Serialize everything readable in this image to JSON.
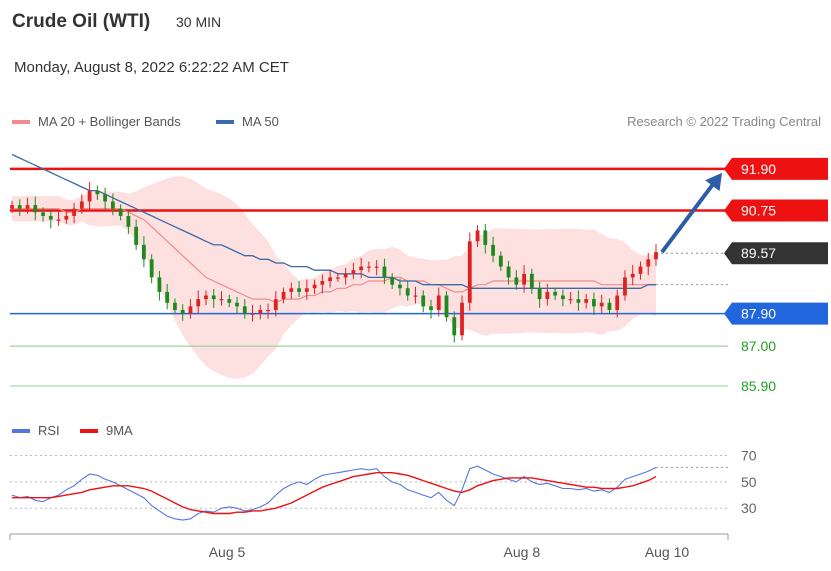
{
  "header": {
    "instrument": "Crude Oil (WTI)",
    "timeframe": "30 MIN",
    "datetime": "Monday, August 8, 2022 6:22:22 AM CET"
  },
  "legend": {
    "ma20": "MA 20 + Bollinger Bands",
    "ma50": "MA 50",
    "rsi": "RSI",
    "rsi_ma": "9MA"
  },
  "copyright": "Research © 2022 Trading Central",
  "colors": {
    "ma20": "#f28b8b",
    "ma50": "#3a6aa8",
    "resistance": "#ee1111",
    "support": "#2266dd",
    "target": "#22a022",
    "candle_up": "#dd2222",
    "candle_down": "#1e8a1e",
    "current": "#333333",
    "arrow": "#2d5ca8",
    "rsi": "#5577dd",
    "rsi_ma": "#ee1111"
  },
  "chart_data": [
    {
      "type": "candlestick",
      "title": "",
      "x_ticks": [
        "Aug 5",
        "Aug 8",
        "Aug 10"
      ],
      "ylim": [
        85.4,
        92.7
      ],
      "levels": [
        {
          "value": 91.9,
          "label": "91.90",
          "kind": "resistance"
        },
        {
          "value": 90.75,
          "label": "90.75",
          "kind": "resistance"
        },
        {
          "value": 89.57,
          "label": "89.57",
          "kind": "current"
        },
        {
          "value": 87.9,
          "label": "87.90",
          "kind": "support"
        },
        {
          "value": 87.0,
          "label": "87.00",
          "kind": "target"
        },
        {
          "value": 85.9,
          "label": "85.90",
          "kind": "target"
        }
      ],
      "close": [
        90.9,
        90.8,
        90.9,
        90.7,
        90.6,
        90.5,
        90.5,
        90.6,
        90.8,
        91.0,
        91.3,
        91.2,
        91.0,
        90.8,
        90.6,
        90.3,
        89.8,
        89.4,
        88.9,
        88.5,
        88.2,
        88.0,
        87.9,
        88.1,
        88.3,
        88.4,
        88.3,
        88.3,
        88.2,
        88.1,
        87.9,
        87.9,
        88.0,
        88.0,
        88.3,
        88.5,
        88.6,
        88.5,
        88.6,
        88.7,
        88.8,
        88.9,
        88.9,
        89.0,
        89.1,
        89.2,
        89.2,
        89.2,
        88.9,
        88.7,
        88.6,
        88.4,
        88.4,
        88.1,
        88.0,
        88.4,
        87.8,
        87.3,
        88.2,
        89.9,
        90.2,
        89.8,
        89.5,
        89.2,
        88.9,
        88.7,
        89.0,
        88.6,
        88.3,
        88.5,
        88.4,
        88.3,
        88.3,
        88.2,
        88.3,
        88.1,
        88.2,
        88.0,
        88.4,
        88.9,
        89.0,
        89.2,
        89.4,
        89.6
      ],
      "ma20": [
        90.8,
        90.8,
        90.8,
        90.8,
        90.8,
        90.8,
        90.8,
        90.7,
        90.7,
        90.8,
        90.8,
        90.8,
        90.8,
        90.8,
        90.8,
        90.7,
        90.6,
        90.5,
        90.3,
        90.1,
        89.9,
        89.7,
        89.5,
        89.3,
        89.1,
        88.9,
        88.8,
        88.7,
        88.6,
        88.5,
        88.4,
        88.3,
        88.3,
        88.3,
        88.2,
        88.3,
        88.3,
        88.3,
        88.4,
        88.4,
        88.5,
        88.5,
        88.6,
        88.6,
        88.7,
        88.7,
        88.8,
        88.8,
        88.8,
        88.9,
        88.9,
        88.8,
        88.8,
        88.8,
        88.7,
        88.7,
        88.6,
        88.5,
        88.5,
        88.6,
        88.7,
        88.7,
        88.8,
        88.8,
        88.8,
        88.8,
        88.8,
        88.8,
        88.8,
        88.8,
        88.8,
        88.8,
        88.8,
        88.8,
        88.8,
        88.8,
        88.7,
        88.7,
        88.7,
        88.7,
        88.7,
        88.7,
        88.7,
        88.7
      ],
      "ma50": [
        92.3,
        92.2,
        92.1,
        92.0,
        91.9,
        91.8,
        91.7,
        91.6,
        91.5,
        91.4,
        91.3,
        91.3,
        91.2,
        91.1,
        91.0,
        90.9,
        90.8,
        90.7,
        90.6,
        90.5,
        90.4,
        90.3,
        90.2,
        90.1,
        90.0,
        89.9,
        89.8,
        89.8,
        89.7,
        89.6,
        89.5,
        89.5,
        89.4,
        89.4,
        89.3,
        89.3,
        89.2,
        89.2,
        89.2,
        89.1,
        89.1,
        89.1,
        89.0,
        89.0,
        89.0,
        89.0,
        88.9,
        88.9,
        88.9,
        88.9,
        88.8,
        88.8,
        88.8,
        88.7,
        88.7,
        88.7,
        88.7,
        88.7,
        88.7,
        88.6,
        88.6,
        88.6,
        88.6,
        88.6,
        88.6,
        88.6,
        88.6,
        88.6,
        88.6,
        88.6,
        88.6,
        88.6,
        88.6,
        88.6,
        88.6,
        88.6,
        88.6,
        88.6,
        88.6,
        88.6,
        88.6,
        88.6,
        88.7,
        88.7
      ]
    },
    {
      "type": "line",
      "title": "",
      "y_ticks": [
        70,
        50,
        30
      ],
      "ylim": [
        15,
        78
      ],
      "series": [
        {
          "name": "RSI",
          "values": [
            40,
            38,
            39,
            36,
            35,
            38,
            40,
            44,
            47,
            52,
            56,
            55,
            52,
            50,
            47,
            44,
            41,
            38,
            32,
            28,
            24,
            22,
            21,
            22,
            26,
            28,
            27,
            30,
            31,
            30,
            28,
            29,
            31,
            34,
            40,
            45,
            48,
            50,
            48,
            52,
            55,
            56,
            57,
            58,
            59,
            60,
            59,
            60,
            54,
            50,
            48,
            44,
            42,
            40,
            38,
            42,
            36,
            32,
            44,
            60,
            62,
            59,
            56,
            54,
            52,
            50,
            54,
            50,
            48,
            49,
            47,
            45,
            45,
            44,
            45,
            43,
            44,
            42,
            46,
            52,
            54,
            56,
            58,
            61
          ]
        },
        {
          "name": "9MA",
          "values": [
            38,
            38,
            38,
            38,
            38,
            38,
            39,
            40,
            41,
            42,
            44,
            45,
            46,
            47,
            47,
            47,
            46,
            45,
            43,
            40,
            37,
            34,
            31,
            29,
            28,
            27,
            26,
            26,
            26,
            27,
            27,
            28,
            28,
            29,
            30,
            32,
            34,
            37,
            40,
            43,
            46,
            48,
            50,
            52,
            54,
            55,
            56,
            57,
            57,
            57,
            56,
            55,
            53,
            51,
            49,
            47,
            45,
            43,
            42,
            44,
            47,
            49,
            51,
            52,
            53,
            53,
            53,
            53,
            52,
            51,
            50,
            49,
            48,
            47,
            46,
            46,
            45,
            45,
            45,
            46,
            47,
            49,
            51,
            54
          ]
        }
      ]
    }
  ]
}
